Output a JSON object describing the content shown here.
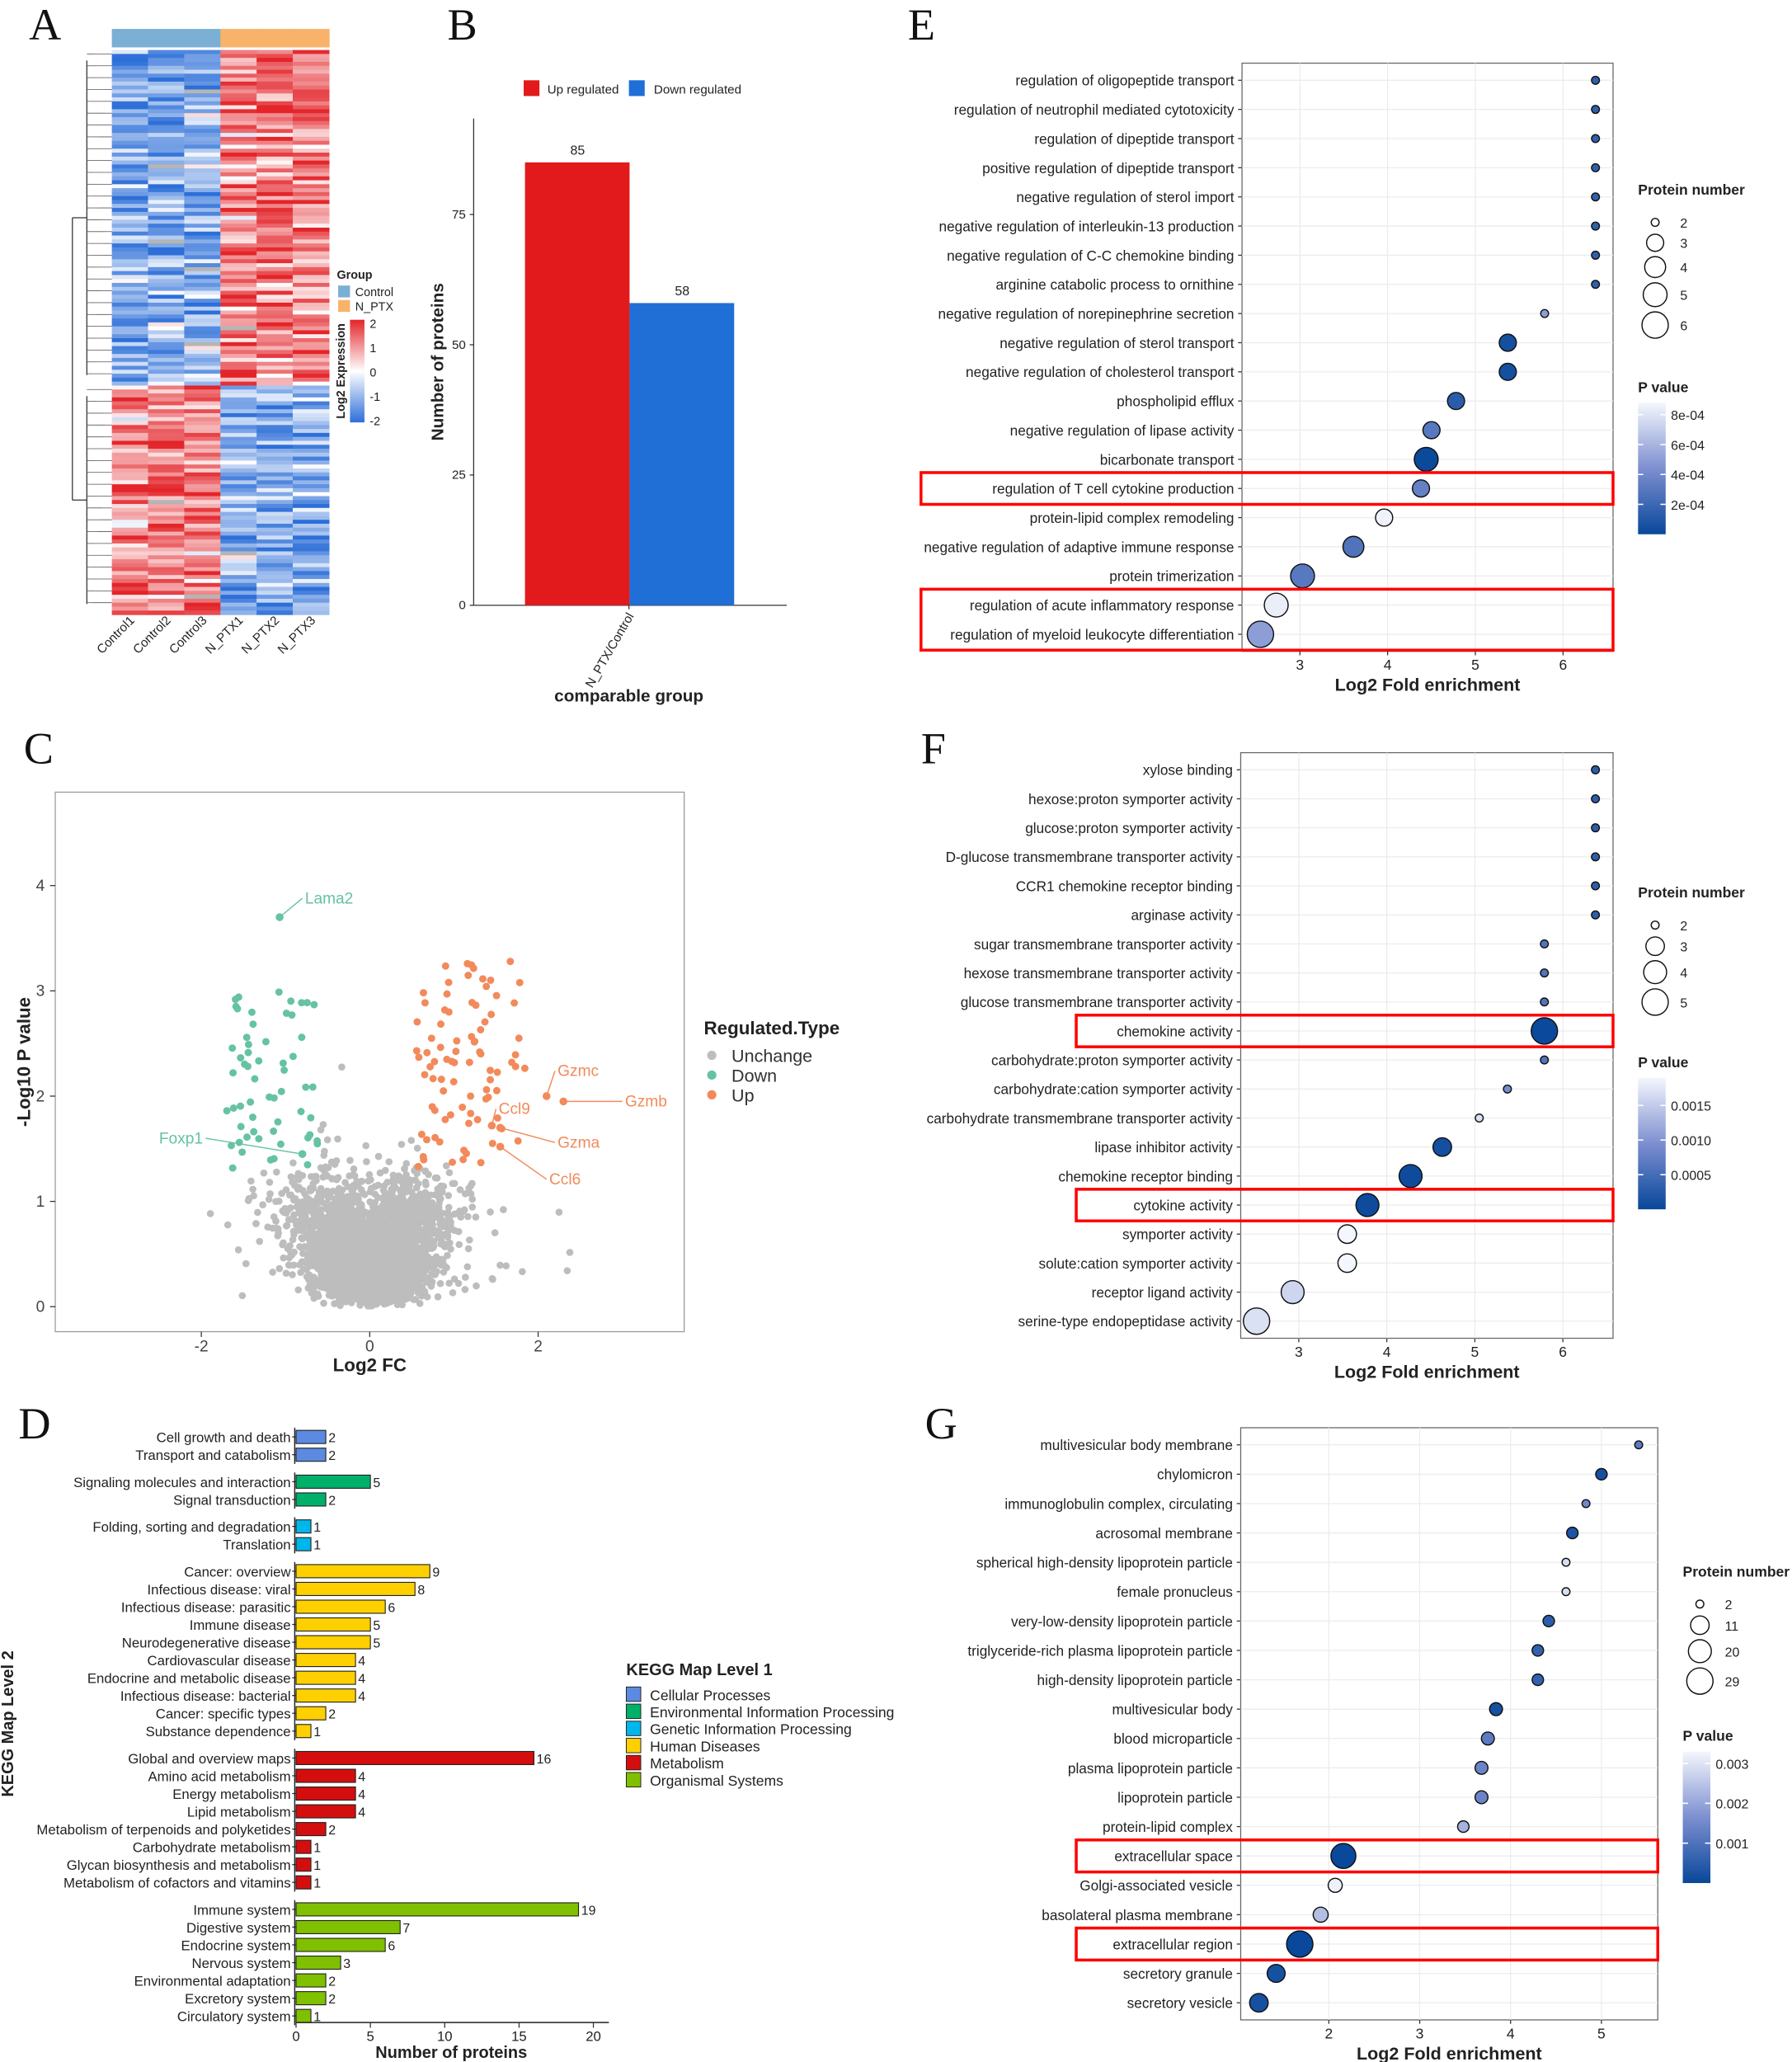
{
  "panels": {
    "A": "A",
    "B": "B",
    "C": "C",
    "D": "D",
    "E": "E",
    "F": "F",
    "G": "G"
  },
  "colors": {
    "up": "#e31a1c",
    "down": "#1f6fd6",
    "volcano_up": "#f28a5b",
    "volcano_down": "#66c2a5",
    "unchange": "#bdbdbd",
    "highlight": "#ff0000",
    "pvalue_dark": "#08479a",
    "pvalue_light": "#f4f7fd"
  },
  "chart_data": [
    {
      "id": "A",
      "type": "heatmap",
      "columns": [
        "Control1",
        "Control2",
        "Control3",
        "N_PTX1",
        "N_PTX2",
        "N_PTX3"
      ],
      "column_groups": [
        "Control",
        "Control",
        "Control",
        "N_PTX",
        "N_PTX",
        "N_PTX"
      ],
      "row_clusters": [
        {
          "rows": 85,
          "pattern": "higher in N_PTX"
        },
        {
          "rows": 58,
          "pattern": "lower in N_PTX"
        }
      ],
      "legend_group_title": "Group",
      "legend_groups": [
        {
          "name": "Control",
          "color": "#7bafd4"
        },
        {
          "name": "N_PTX",
          "color": "#f9b26a"
        }
      ],
      "colorbar_title": "Log2 Expression",
      "colorbar_ticks": [
        "2",
        "1",
        "0",
        "-1",
        "-2"
      ],
      "range": [
        -2,
        2
      ]
    },
    {
      "id": "B",
      "type": "bar",
      "categories": [
        "N_PTX/Control"
      ],
      "series": [
        {
          "name": "Up regulated",
          "values": [
            85
          ]
        },
        {
          "name": "Down regulated",
          "values": [
            58
          ]
        }
      ],
      "xlabel": "comparable group",
      "ylabel": "Number of proteins",
      "yticks": [
        0,
        25,
        50,
        75
      ],
      "ylim": [
        0,
        93
      ]
    },
    {
      "id": "C",
      "type": "scatter",
      "xlabel": "Log2 FC",
      "ylabel": "-Log10 P value",
      "xticks": [
        -2,
        0,
        2
      ],
      "yticks": [
        0,
        1,
        2,
        3,
        4
      ],
      "xlim": [
        -3.73,
        3.75
      ],
      "ylim": [
        -0.24,
        4.89
      ],
      "legend_title": "Regulated.Type",
      "legend": [
        "Unchange",
        "Down",
        "Up"
      ],
      "counts": {
        "Unchange": 3000,
        "Down": 58,
        "Up": 85
      },
      "labeled_points": [
        {
          "gene": "Lama2",
          "x": -1.07,
          "y": 3.7,
          "type": "Down",
          "lx": -0.8,
          "ly": 3.88
        },
        {
          "gene": "Foxp1",
          "x": -0.8,
          "y": 1.45,
          "type": "Down",
          "lx": -1.95,
          "ly": 1.6
        },
        {
          "gene": "Gzmc",
          "x": 2.1,
          "y": 2.0,
          "type": "Up",
          "lx": 2.2,
          "ly": 2.24
        },
        {
          "gene": "Gzmb",
          "x": 2.3,
          "y": 1.95,
          "type": "Up",
          "lx": 3.0,
          "ly": 1.95
        },
        {
          "gene": "Ccl9",
          "x": 1.45,
          "y": 1.72,
          "type": "Up",
          "lx": 1.5,
          "ly": 1.88
        },
        {
          "gene": "Gzma",
          "x": 1.55,
          "y": 1.7,
          "type": "Up",
          "lx": 2.2,
          "ly": 1.56
        },
        {
          "gene": "Ccl6",
          "x": 1.55,
          "y": 1.52,
          "type": "Up",
          "lx": 2.1,
          "ly": 1.21
        }
      ]
    },
    {
      "id": "D",
      "type": "bar",
      "orientation": "horizontal",
      "xlabel": "Number of proteins",
      "ylabel": "KEGG Map Level 2",
      "xticks": [
        0,
        5,
        10,
        15,
        20
      ],
      "xlim": [
        0,
        20
      ],
      "legend_title": "KEGG Map Level 1",
      "groups": [
        {
          "name": "Cellular Processes",
          "color": "#5b8ae0",
          "items": [
            [
              "Cell growth and death",
              2
            ],
            [
              "Transport and catabolism",
              2
            ]
          ]
        },
        {
          "name": "Environmental Information Processing",
          "color": "#00b06a",
          "items": [
            [
              "Signaling molecules and interaction",
              5
            ],
            [
              "Signal transduction",
              2
            ]
          ]
        },
        {
          "name": "Genetic Information Processing",
          "color": "#00b7eb",
          "items": [
            [
              "Folding, sorting and degradation",
              1
            ],
            [
              "Translation",
              1
            ]
          ]
        },
        {
          "name": "Human Diseases",
          "color": "#ffd000",
          "items": [
            [
              "Cancer: overview",
              9
            ],
            [
              "Infectious disease: viral",
              8
            ],
            [
              "Infectious disease: parasitic",
              6
            ],
            [
              "Immune disease",
              5
            ],
            [
              "Neurodegenerative disease",
              5
            ],
            [
              "Cardiovascular disease",
              4
            ],
            [
              "Endocrine and metabolic disease",
              4
            ],
            [
              "Infectious disease: bacterial",
              4
            ],
            [
              "Cancer: specific types",
              2
            ],
            [
              "Substance dependence",
              1
            ]
          ]
        },
        {
          "name": "Metabolism",
          "color": "#d40e0e",
          "items": [
            [
              "Global and overview maps",
              16
            ],
            [
              "Amino acid metabolism",
              4
            ],
            [
              "Energy metabolism",
              4
            ],
            [
              "Lipid metabolism",
              4
            ],
            [
              "Metabolism of terpenoids and polyketides",
              2
            ],
            [
              "Carbohydrate metabolism",
              1
            ],
            [
              "Glycan biosynthesis and metabolism",
              1
            ],
            [
              "Metabolism of cofactors and vitamins",
              1
            ]
          ]
        },
        {
          "name": "Organismal Systems",
          "color": "#7fc000",
          "items": [
            [
              "Immune system",
              19
            ],
            [
              "Digestive system",
              7
            ],
            [
              "Endocrine system",
              6
            ],
            [
              "Nervous system",
              3
            ],
            [
              "Environmental adaptation",
              2
            ],
            [
              "Excretory system",
              2
            ],
            [
              "Circulatory system",
              1
            ]
          ]
        }
      ]
    },
    {
      "id": "E",
      "type": "scatter",
      "subtype": "bubble",
      "xlabel": "Log2 Fold enrichment",
      "xticks": [
        3,
        4,
        5,
        6
      ],
      "xlim": [
        2.34,
        6.57
      ],
      "size_title": "Protein number",
      "size_legend": [
        2,
        3,
        4,
        5,
        6
      ],
      "color_title": "P value",
      "color_ticks": [
        "8e-04",
        "6e-04",
        "4e-04",
        "2e-04"
      ],
      "color_tick_values": [
        0.0008,
        0.0006,
        0.0004,
        0.0002
      ],
      "pmax": 0.00088,
      "highlighted_rows": [
        14,
        18,
        19
      ],
      "terms": [
        [
          "regulation of oligopeptide transport",
          6.37,
          2,
          0.00015
        ],
        [
          "regulation of neutrophil mediated cytotoxicity",
          6.37,
          2,
          0.00015
        ],
        [
          "regulation of dipeptide transport",
          6.37,
          2,
          0.00015
        ],
        [
          "positive regulation of dipeptide transport",
          6.37,
          2,
          0.00015
        ],
        [
          "negative regulation of sterol import",
          6.37,
          2,
          0.00015
        ],
        [
          "negative regulation of interleukin-13 production",
          6.37,
          2,
          0.00015
        ],
        [
          "negative regulation of C-C chemokine binding",
          6.37,
          2,
          0.00015
        ],
        [
          "arginine catabolic process to ornithine",
          6.37,
          2,
          0.00015
        ],
        [
          "negative regulation of norepinephrine secretion",
          5.79,
          2,
          0.0005
        ],
        [
          "negative regulation of sterol transport",
          5.37,
          3,
          5e-05
        ],
        [
          "negative regulation of cholesterol transport",
          5.37,
          3,
          5e-05
        ],
        [
          "phospholipid efflux",
          4.78,
          3,
          0.00013
        ],
        [
          "negative regulation of lipase activity",
          4.5,
          3,
          0.0003
        ],
        [
          "bicarbonate transport",
          4.44,
          5,
          1e-05
        ],
        [
          "regulation of T cell cytokine production",
          4.38,
          3,
          0.00035
        ],
        [
          "protein-lipid complex remodeling",
          3.96,
          3,
          0.00086
        ],
        [
          "negative regulation of adaptive immune response",
          3.61,
          4,
          0.00027
        ],
        [
          "protein trimerization",
          3.03,
          5,
          0.0003
        ],
        [
          "regulation of acute inflammatory response",
          2.73,
          5,
          0.00084
        ],
        [
          "regulation of myeloid leukocyte differentiation",
          2.55,
          6,
          0.0005
        ]
      ]
    },
    {
      "id": "F",
      "type": "scatter",
      "subtype": "bubble",
      "xlabel": "Log2 Fold enrichment",
      "xticks": [
        3,
        4,
        5,
        6
      ],
      "xlim": [
        2.34,
        6.57
      ],
      "size_title": "Protein number",
      "size_legend": [
        2,
        3,
        4,
        5
      ],
      "color_title": "P value",
      "color_ticks": [
        "0.0015",
        "0.0010",
        "0.0005"
      ],
      "color_tick_values": [
        0.0015,
        0.001,
        0.0005
      ],
      "pmax": 0.0019,
      "highlighted_rows": [
        9,
        15
      ],
      "terms": [
        [
          "xylose binding",
          6.37,
          2,
          0.0003
        ],
        [
          "hexose:proton symporter activity",
          6.37,
          2,
          0.0003
        ],
        [
          "glucose:proton symporter activity",
          6.37,
          2,
          0.0003
        ],
        [
          "D-glucose transmembrane transporter activity",
          6.37,
          2,
          0.0003
        ],
        [
          "CCR1 chemokine receptor binding",
          6.37,
          2,
          0.0003
        ],
        [
          "arginase activity",
          6.37,
          2,
          0.0003
        ],
        [
          "sugar transmembrane transporter activity",
          5.79,
          2,
          0.0006
        ],
        [
          "hexose transmembrane transporter activity",
          5.79,
          2,
          0.0006
        ],
        [
          "glucose transmembrane transporter activity",
          5.79,
          2,
          0.0006
        ],
        [
          "chemokine activity",
          5.79,
          5,
          2e-05
        ],
        [
          "carbohydrate:proton symporter activity",
          5.79,
          2,
          0.0006
        ],
        [
          "carbohydrate:cation symporter activity",
          5.37,
          2,
          0.0009
        ],
        [
          "carbohydrate transmembrane transporter activity",
          5.05,
          2,
          0.0017
        ],
        [
          "lipase inhibitor activity",
          4.63,
          3,
          0.0001
        ],
        [
          "chemokine receptor binding",
          4.27,
          4,
          5e-05
        ],
        [
          "cytokine activity",
          3.78,
          4,
          5e-05
        ],
        [
          "symporter activity",
          3.55,
          3,
          0.0019
        ],
        [
          "solute:cation symporter activity",
          3.55,
          3,
          0.0019
        ],
        [
          "receptor ligand activity",
          2.93,
          4,
          0.0016
        ],
        [
          "serine-type endopeptidase activity",
          2.52,
          5,
          0.0017
        ]
      ]
    },
    {
      "id": "G",
      "type": "scatter",
      "subtype": "bubble",
      "xlabel": "Log2 Fold enrichment",
      "xticks": [
        2,
        3,
        4,
        5
      ],
      "xlim": [
        1.03,
        5.62
      ],
      "size_title": "Protein number",
      "size_legend": [
        2,
        11,
        20,
        29
      ],
      "color_title": "P value",
      "color_ticks": [
        "0.003",
        "0.002",
        "0.001"
      ],
      "color_tick_values": [
        0.003,
        0.002,
        0.001
      ],
      "pmax": 0.0033,
      "highlighted_rows": [
        14,
        17
      ],
      "terms": [
        [
          "multivesicular body membrane",
          5.41,
          2,
          0.0012
        ],
        [
          "chylomicron",
          5.0,
          3,
          0.0002
        ],
        [
          "immunoglobulin complex, circulating",
          4.83,
          2,
          0.0015
        ],
        [
          "acrosomal membrane",
          4.68,
          3,
          0.0003
        ],
        [
          "spherical high-density lipoprotein particle",
          4.61,
          2,
          0.0029
        ],
        [
          "female pronucleus",
          4.61,
          2,
          0.0029
        ],
        [
          "very-low-density lipoprotein particle",
          4.42,
          3,
          0.0005
        ],
        [
          "triglyceride-rich plasma lipoprotein particle",
          4.3,
          3,
          0.0006
        ],
        [
          "high-density lipoprotein particle",
          4.3,
          3,
          0.0006
        ],
        [
          "multivesicular body",
          3.84,
          4,
          0.0002
        ],
        [
          "blood microparticle",
          3.75,
          4,
          0.0012
        ],
        [
          "plasma lipoprotein particle",
          3.68,
          4,
          0.0014
        ],
        [
          "lipoprotein particle",
          3.68,
          4,
          0.0014
        ],
        [
          "protein-lipid complex",
          3.48,
          3,
          0.0022
        ],
        [
          "extracellular space",
          2.16,
          25,
          3e-05
        ],
        [
          "Golgi-associated vesicle",
          2.07,
          5,
          0.0032
        ],
        [
          "basolateral plasma membrane",
          1.91,
          6,
          0.0024
        ],
        [
          "extracellular region",
          1.68,
          29,
          2e-05
        ],
        [
          "secretory granule",
          1.42,
          10,
          0.0002
        ],
        [
          "secretory vesicle",
          1.23,
          11,
          0.0002
        ]
      ]
    }
  ]
}
